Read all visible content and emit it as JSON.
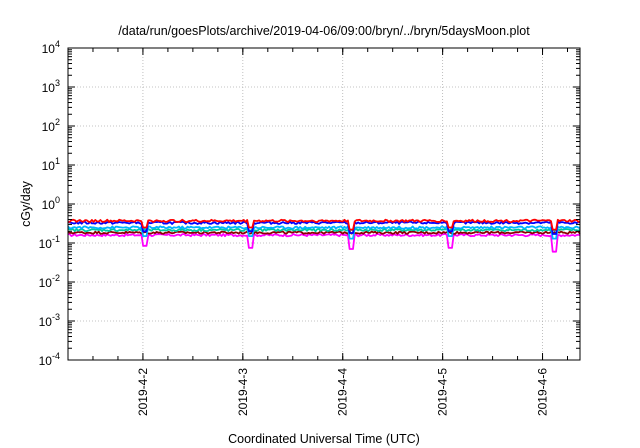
{
  "chart_data": {
    "type": "line",
    "title": "/data/run/goesPlots/archive/2019-04-06/09:00/bryn/../bryn/5daysMoon.plot",
    "xlabel": "Coordinated Universal Time (UTC)",
    "ylabel": "cGy/day",
    "yscale": "log",
    "ylim": [
      0.0001,
      10000
    ],
    "xlim": [
      "2019-04-01T06:00",
      "2019-04-06T09:00"
    ],
    "grid": true,
    "legend": "none",
    "y_ticks": [
      {
        "value": 0.0001,
        "base": "10",
        "exp": "-4"
      },
      {
        "value": 0.001,
        "base": "10",
        "exp": "-3"
      },
      {
        "value": 0.01,
        "base": "10",
        "exp": "-2"
      },
      {
        "value": 0.1,
        "base": "10",
        "exp": "-1"
      },
      {
        "value": 1,
        "base": "10",
        "exp": "0"
      },
      {
        "value": 10,
        "base": "10",
        "exp": "1"
      },
      {
        "value": 100,
        "base": "10",
        "exp": "2"
      },
      {
        "value": 1000,
        "base": "10",
        "exp": "3"
      },
      {
        "value": 10000,
        "base": "10",
        "exp": "4"
      }
    ],
    "x_ticks": [
      {
        "value": "2019-04-02T00:00",
        "label": "2019-4-2"
      },
      {
        "value": "2019-04-03T00:00",
        "label": "2019-4-3"
      },
      {
        "value": "2019-04-04T00:00",
        "label": "2019-4-4"
      },
      {
        "value": "2019-04-05T00:00",
        "label": "2019-4-5"
      },
      {
        "value": "2019-04-06T00:00",
        "label": "2019-4-6"
      }
    ],
    "series": [
      {
        "color": "#ff0000",
        "baseline": 0.37,
        "dips": [
          {
            "x": "2019-04-02T00:30",
            "y": 0.25
          },
          {
            "x": "2019-04-03T02:00",
            "y": 0.25
          },
          {
            "x": "2019-04-04T02:00",
            "y": 0.22
          },
          {
            "x": "2019-04-05T02:00",
            "y": 0.25
          },
          {
            "x": "2019-04-06T03:00",
            "y": 0.22
          }
        ]
      },
      {
        "color": "#0000ff",
        "baseline": 0.33,
        "dips": [
          {
            "x": "2019-04-02T00:30",
            "y": 0.2
          },
          {
            "x": "2019-04-03T02:00",
            "y": 0.2
          },
          {
            "x": "2019-04-04T02:00",
            "y": 0.18
          },
          {
            "x": "2019-04-05T02:00",
            "y": 0.2
          },
          {
            "x": "2019-04-06T03:00",
            "y": 0.17
          }
        ]
      },
      {
        "color": "#00b4ff",
        "baseline": 0.25,
        "dips": [
          {
            "x": "2019-04-02T00:30",
            "y": 0.15
          },
          {
            "x": "2019-04-03T02:00",
            "y": 0.15
          },
          {
            "x": "2019-04-04T02:00",
            "y": 0.13
          },
          {
            "x": "2019-04-05T02:00",
            "y": 0.15
          },
          {
            "x": "2019-04-06T03:00",
            "y": 0.13
          }
        ]
      },
      {
        "color": "#00c8a0",
        "baseline": 0.215,
        "dips": []
      },
      {
        "color": "#8b0000",
        "baseline": 0.185,
        "dips": []
      },
      {
        "color": "#ff00ff",
        "baseline": 0.16,
        "dips": [
          {
            "x": "2019-04-02T00:30",
            "y": 0.085
          },
          {
            "x": "2019-04-03T02:00",
            "y": 0.075
          },
          {
            "x": "2019-04-04T02:00",
            "y": 0.07
          },
          {
            "x": "2019-04-05T02:00",
            "y": 0.075
          },
          {
            "x": "2019-04-06T03:00",
            "y": 0.06
          }
        ]
      }
    ]
  }
}
